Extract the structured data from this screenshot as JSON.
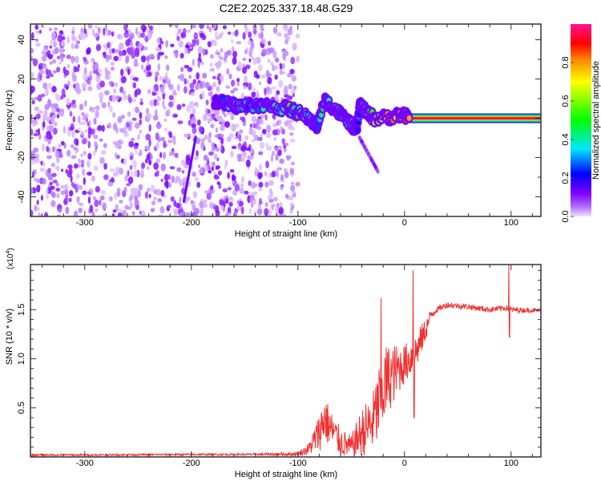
{
  "chart_data": [
    {
      "type": "heatmap",
      "title": "C2E2.2025.337.18.48.G29",
      "xlabel": "Height of straight line (km)",
      "ylabel": "Frequency (Hz)",
      "xlim": [
        -351,
        128
      ],
      "ylim": [
        -50,
        48
      ],
      "xticks": [
        -300,
        -200,
        -100,
        0,
        100
      ],
      "xtick_labels": [
        "-300",
        "-200",
        "-100",
        "0",
        "100"
      ],
      "yticks": [
        -40,
        -20,
        0,
        20,
        40
      ],
      "ytick_labels": [
        "-40",
        "-20",
        "0",
        "20",
        "40"
      ],
      "colorbar": {
        "label": "Normalized spectral amplitude",
        "range": [
          0,
          1
        ],
        "ticks": [
          0.0,
          0.2,
          0.4,
          0.6,
          0.8
        ],
        "tick_labels": [
          "0.0",
          "0.2",
          "0.4",
          "0.6",
          "0.8"
        ],
        "colors": [
          "#f0e0ff",
          "#8000ff",
          "#0000ff",
          "#00e5ff",
          "#00ff00",
          "#ffff00",
          "#ff8000",
          "#ff0000",
          "#ff1493"
        ]
      },
      "noise_region": {
        "x_range": [
          -351,
          -115
        ],
        "amplitude": 0.1
      },
      "ridge": [
        {
          "x": -178,
          "f": 9,
          "a": 0.2
        },
        {
          "x": -165,
          "f": 7,
          "a": 0.35
        },
        {
          "x": -155,
          "f": 6,
          "a": 0.45
        },
        {
          "x": -140,
          "f": 7,
          "a": 0.3
        },
        {
          "x": -125,
          "f": 6,
          "a": 0.45
        },
        {
          "x": -110,
          "f": 5,
          "a": 0.5
        },
        {
          "x": -100,
          "f": 3,
          "a": 0.55
        },
        {
          "x": -90,
          "f": 0,
          "a": 0.45
        },
        {
          "x": -82,
          "f": -4,
          "a": 0.3
        },
        {
          "x": -75,
          "f": 9,
          "a": 0.5
        },
        {
          "x": -68,
          "f": 6,
          "a": 0.55
        },
        {
          "x": -60,
          "f": 2,
          "a": 0.45
        },
        {
          "x": -50,
          "f": -3,
          "a": 0.4
        },
        {
          "x": -45,
          "f": -7,
          "a": 0.3
        },
        {
          "x": -42,
          "f": 7,
          "a": 0.3
        },
        {
          "x": -36,
          "f": 3,
          "a": 0.6
        },
        {
          "x": -28,
          "f": 0,
          "a": 0.85
        },
        {
          "x": -15,
          "f": 0.5,
          "a": 0.8
        },
        {
          "x": -3,
          "f": 2,
          "a": 0.85
        },
        {
          "x": 5,
          "f": 0,
          "a": 0.9
        }
      ],
      "carrier": {
        "x_range": [
          -30,
          128
        ],
        "f": 0,
        "a": 0.95
      },
      "tail": [
        {
          "x": -42,
          "f": -10
        },
        {
          "x": -25,
          "f": -27
        }
      ],
      "streak": [
        {
          "x": -207,
          "f": -42
        },
        {
          "x": -196,
          "f": -10
        }
      ]
    },
    {
      "type": "line",
      "xlabel": "Height of straight line (km)",
      "ylabel": "SNR (10 * v/v)",
      "y_multiplier": "(x10",
      "y_multiplier_exp": "4",
      "xlim": [
        -351,
        128
      ],
      "ylim": [
        0,
        1.96
      ],
      "xticks": [
        -300,
        -200,
        -100,
        0,
        100
      ],
      "xtick_labels": [
        "-300",
        "-200",
        "-100",
        "0",
        "100"
      ],
      "yticks": [
        0.5,
        1.0,
        1.5
      ],
      "ytick_labels": [
        "0.5",
        "1.0",
        "1.5"
      ],
      "color": "#f03232",
      "series": [
        {
          "name": "SNR",
          "x": [
            -351,
            -300,
            -200,
            -150,
            -100,
            -90,
            -80,
            -75,
            -70,
            -60,
            -50,
            -40,
            -30,
            -25,
            -20,
            -15,
            -10,
            0,
            10,
            20,
            25,
            30,
            40,
            60,
            80,
            95,
            100,
            128
          ],
          "y": [
            0.02,
            0.02,
            0.025,
            0.025,
            0.03,
            0.08,
            0.25,
            0.4,
            0.3,
            0.15,
            0.1,
            0.25,
            0.35,
            0.5,
            0.7,
            0.8,
            0.85,
            0.95,
            1.05,
            1.3,
            1.45,
            1.5,
            1.55,
            1.53,
            1.5,
            1.52,
            1.5,
            1.49
          ],
          "noise": [
            0.01,
            0.01,
            0.01,
            0.01,
            0.02,
            0.06,
            0.2,
            0.25,
            0.2,
            0.15,
            0.12,
            0.25,
            0.3,
            0.4,
            0.45,
            0.35,
            0.3,
            0.2,
            0.2,
            0.12,
            0.06,
            0.03,
            0.03,
            0.03,
            0.03,
            0.03,
            0.03,
            0.02
          ]
        }
      ],
      "spikes": [
        {
          "x": -22,
          "y": 1.62
        },
        {
          "x": 8,
          "y": 1.9
        },
        {
          "x": 9,
          "y": 0.4
        },
        {
          "x": 98,
          "y": 1.96
        },
        {
          "x": 98.5,
          "y": 1.22
        }
      ]
    }
  ]
}
